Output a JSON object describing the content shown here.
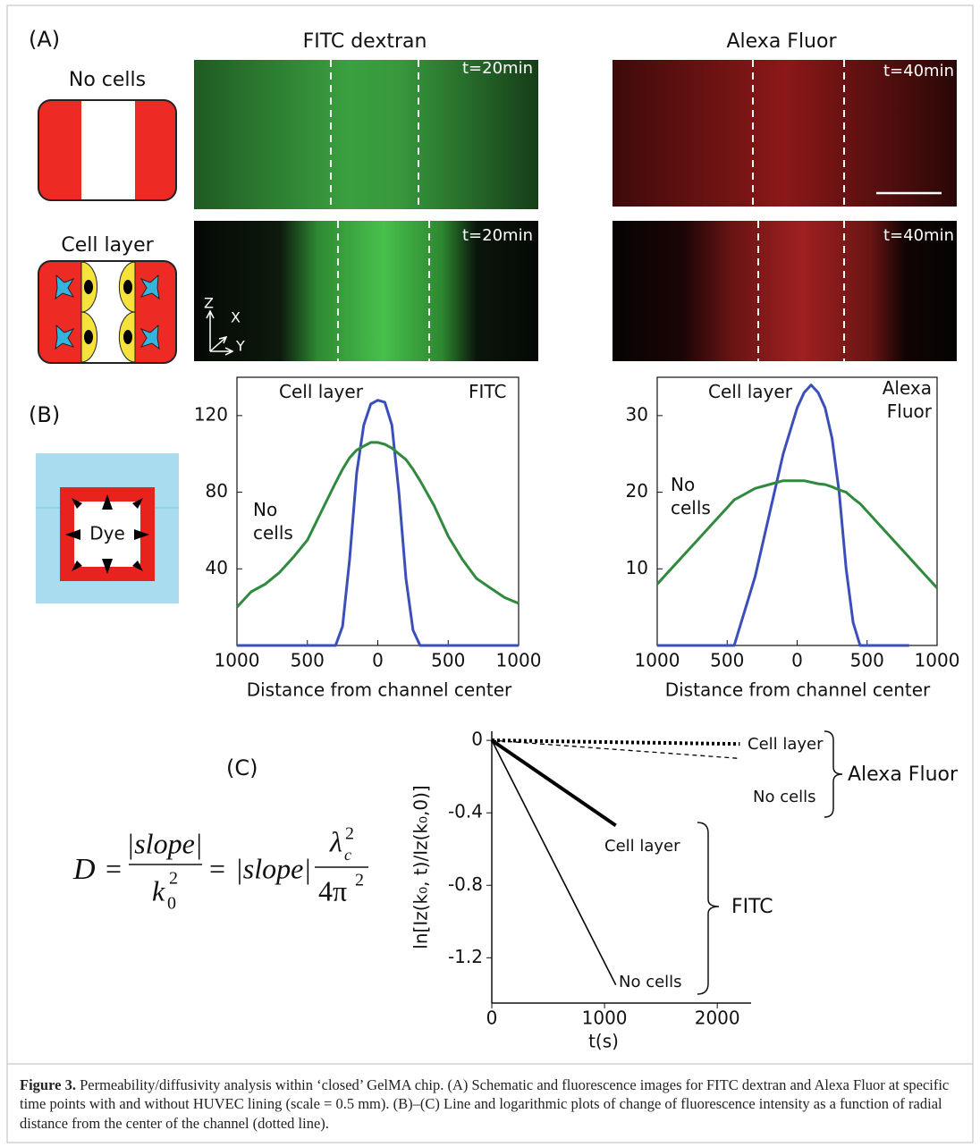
{
  "panel_a": {
    "label": "(A)",
    "col_titles": [
      "FITC dextran",
      "Alexa Fluor"
    ],
    "row_labels": [
      "No cells",
      "Cell layer"
    ],
    "timestamps": [
      "t=20min",
      "t=40min",
      "t=20min",
      "t=40min"
    ],
    "axes": [
      "Z",
      "X",
      "Y"
    ]
  },
  "panel_b": {
    "label": "(B)",
    "dye": "Dye"
  },
  "panel_c": {
    "label": "(C)"
  },
  "equation": {
    "lhs": "D",
    "eq": "=",
    "slope": "|slope|",
    "k": "k",
    "zero": "0",
    "two": "2",
    "lambda": "λ",
    "c": "c",
    "four_pi": "4π"
  },
  "caption": {
    "bold": "Figure 3.",
    "text": "Permeability/diffusivity analysis within ‘closed’ GelMA chip. (A) Schematic and fluorescence images for FITC dextran and Alexa Fluor at specific time points with and without HUVEC lining (scale = 0.5 mm). (B)–(C) Line and logarithmic plots of change of fluorescence intensity as a function of radial distance from the center of the channel (dotted line)."
  },
  "chart_data": [
    {
      "type": "line",
      "title": "FITC",
      "x_label": "Distance from channel center",
      "x": [
        -1000,
        -900,
        -800,
        -700,
        -600,
        -500,
        -400,
        -300,
        -250,
        -200,
        -150,
        -100,
        -50,
        0,
        50,
        100,
        150,
        200,
        250,
        300,
        400,
        500,
        600,
        700,
        800,
        900,
        1000
      ],
      "xlim": [
        -1000,
        1000
      ],
      "xticks": [
        {
          "value": -1000,
          "label": "1000"
        },
        {
          "value": -500,
          "label": "500"
        },
        0,
        500,
        1000
      ],
      "ylim": [
        0,
        140
      ],
      "yticks": [
        40,
        80,
        120
      ],
      "series": [
        {
          "name": "Cell layer",
          "color": "#3b4fb8",
          "line_width": 3,
          "dash": "solid",
          "values": [
            0,
            0,
            0,
            0,
            0,
            0,
            0,
            0,
            10,
            45,
            90,
            115,
            126,
            128,
            127,
            115,
            80,
            35,
            8,
            0,
            0,
            0,
            0,
            0,
            0,
            0,
            0
          ]
        },
        {
          "name": "No cells",
          "color": "#2f8a3e",
          "line_width": 3,
          "dash": "solid",
          "values": [
            20,
            28,
            32,
            38,
            46,
            55,
            70,
            85,
            92,
            98,
            102,
            104,
            106,
            106,
            105,
            103,
            100,
            97,
            92,
            86,
            73,
            57,
            45,
            35,
            30,
            25,
            22
          ]
        }
      ]
    },
    {
      "type": "line",
      "title": "Alexa Fluor",
      "x_label": "Distance from channel center",
      "x": [
        -1000,
        -900,
        -800,
        -700,
        -600,
        -500,
        -450,
        -400,
        -300,
        -200,
        -100,
        -50,
        0,
        50,
        100,
        150,
        200,
        250,
        300,
        350,
        400,
        450,
        500,
        600,
        700,
        800,
        900,
        1000
      ],
      "xlim": [
        -1000,
        1000
      ],
      "xticks": [
        {
          "value": -1000,
          "label": "1000"
        },
        {
          "value": -500,
          "label": "500"
        },
        0,
        500,
        1000
      ],
      "ylim": [
        0,
        35
      ],
      "yticks": [
        10,
        20,
        30
      ],
      "series": [
        {
          "name": "Cell layer",
          "color": "#3b4fb8",
          "line_width": 3,
          "dash": "solid",
          "values": [
            0,
            0,
            0,
            0,
            0,
            0,
            0,
            3,
            9,
            17,
            25,
            28,
            31,
            33,
            34,
            33,
            31,
            27,
            20,
            10,
            3,
            0,
            0,
            0,
            0,
            0,
            null,
            null
          ]
        },
        {
          "name": "No cells",
          "color": "#2f8a3e",
          "line_width": 3,
          "dash": "solid",
          "values": [
            8,
            10,
            12,
            14,
            16,
            18,
            19,
            19.5,
            20.5,
            21,
            21.5,
            21.5,
            21.5,
            21.5,
            21.3,
            21.1,
            21,
            20.7,
            20.3,
            20,
            19.2,
            18.5,
            17.5,
            15.5,
            13.5,
            11.5,
            9.5,
            7.5
          ]
        }
      ]
    },
    {
      "type": "line",
      "x_label": "t(s)",
      "y_label": "ln[Iz(k₀, t)/Iz(k₀,0)]",
      "x": [
        0,
        1100,
        2200
      ],
      "xlim": [
        0,
        2300
      ],
      "xticks": [
        0,
        1000,
        2000
      ],
      "ylim": [
        -1.45,
        0.05
      ],
      "yticks": [
        0,
        -0.4,
        -0.8,
        -1.2
      ],
      "groups": [
        {
          "label": "Alexa Fluor"
        },
        {
          "label": "FITC"
        }
      ],
      "series": [
        {
          "name": "No cells",
          "color": "#000000",
          "line_width": 1.6,
          "dash": "solid",
          "values": [
            0,
            -1.35,
            null
          ]
        },
        {
          "name": "Cell layer",
          "color": "#000000",
          "line_width": 4,
          "dash": "solid",
          "values": [
            0,
            -0.47,
            null
          ]
        },
        {
          "name": "Cell layer",
          "color": "#000000",
          "line_width": 4,
          "dash": "dotted",
          "values": [
            0,
            -0.01,
            -0.02
          ]
        },
        {
          "name": "No cells",
          "color": "#000000",
          "line_width": 1.3,
          "dash": "dashed",
          "values": [
            0,
            -0.05,
            -0.1
          ]
        }
      ]
    }
  ]
}
